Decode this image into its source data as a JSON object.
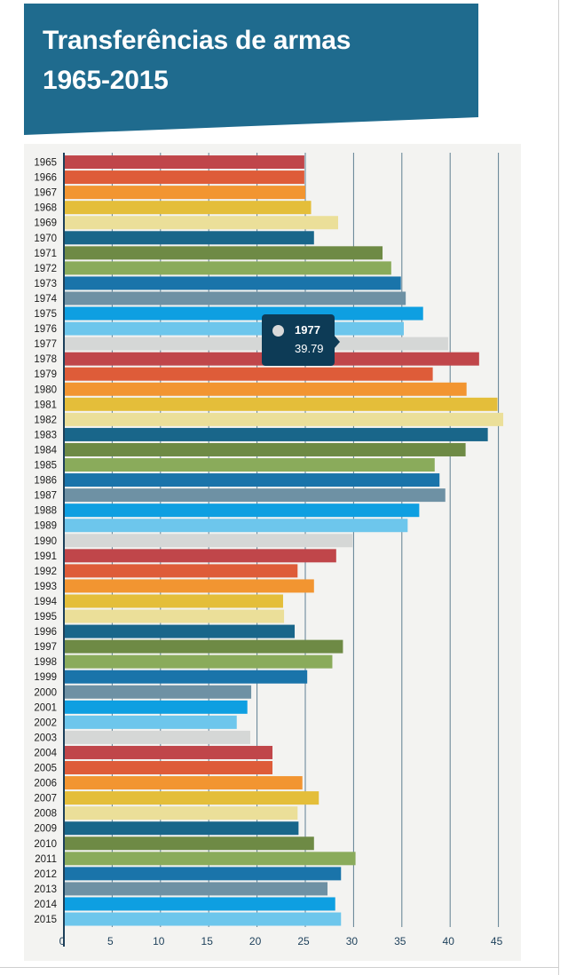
{
  "header": {
    "title_line1": "Transferências de armas",
    "title_line2": "1965-2015",
    "background_color": "#1f6b8e"
  },
  "tooltip": {
    "year": "1977",
    "value": "39.79",
    "dot_color": "#d9d9d9"
  },
  "chart_data": {
    "type": "bar",
    "orientation": "horizontal",
    "title": "Transferências de armas 1965-2015",
    "xlim": [
      0,
      47
    ],
    "x_ticks": [
      "0",
      "5",
      "10",
      "15",
      "20",
      "25",
      "30",
      "35",
      "40",
      "45"
    ],
    "grid": true,
    "categories": [
      "1965",
      "1966",
      "1967",
      "1968",
      "1969",
      "1970",
      "1971",
      "1972",
      "1973",
      "1974",
      "1975",
      "1976",
      "1977",
      "1978",
      "1979",
      "1980",
      "1981",
      "1982",
      "1983",
      "1984",
      "1985",
      "1986",
      "1987",
      "1988",
      "1989",
      "1990",
      "1991",
      "1992",
      "1993",
      "1994",
      "1995",
      "1996",
      "1997",
      "1998",
      "1999",
      "2000",
      "2001",
      "2002",
      "2003",
      "2004",
      "2005",
      "2006",
      "2007",
      "2008",
      "2009",
      "2010",
      "2011",
      "2012",
      "2013",
      "2014",
      "2015"
    ],
    "values": [
      24.9,
      24.9,
      25.0,
      25.6,
      28.4,
      25.9,
      33.0,
      33.9,
      34.9,
      35.4,
      37.2,
      35.2,
      39.79,
      43.0,
      38.2,
      41.7,
      44.9,
      45.5,
      43.9,
      41.6,
      38.4,
      38.9,
      39.5,
      36.8,
      35.6,
      29.9,
      28.2,
      24.2,
      25.9,
      22.7,
      22.8,
      23.9,
      28.9,
      27.8,
      25.2,
      19.4,
      19.0,
      17.9,
      19.3,
      21.6,
      21.6,
      24.7,
      26.4,
      24.2,
      24.3,
      25.9,
      30.2,
      28.7,
      27.3,
      28.1,
      28.7
    ],
    "palette": [
      "#c0464a",
      "#de5c39",
      "#f29531",
      "#e4be3a",
      "#ebdf99",
      "#19668a",
      "#6e8a45",
      "#8aab5b",
      "#1a74aa",
      "#6e91a4",
      "#0e9fe1",
      "#6dc6ec",
      "#d5d7d6"
    ]
  }
}
